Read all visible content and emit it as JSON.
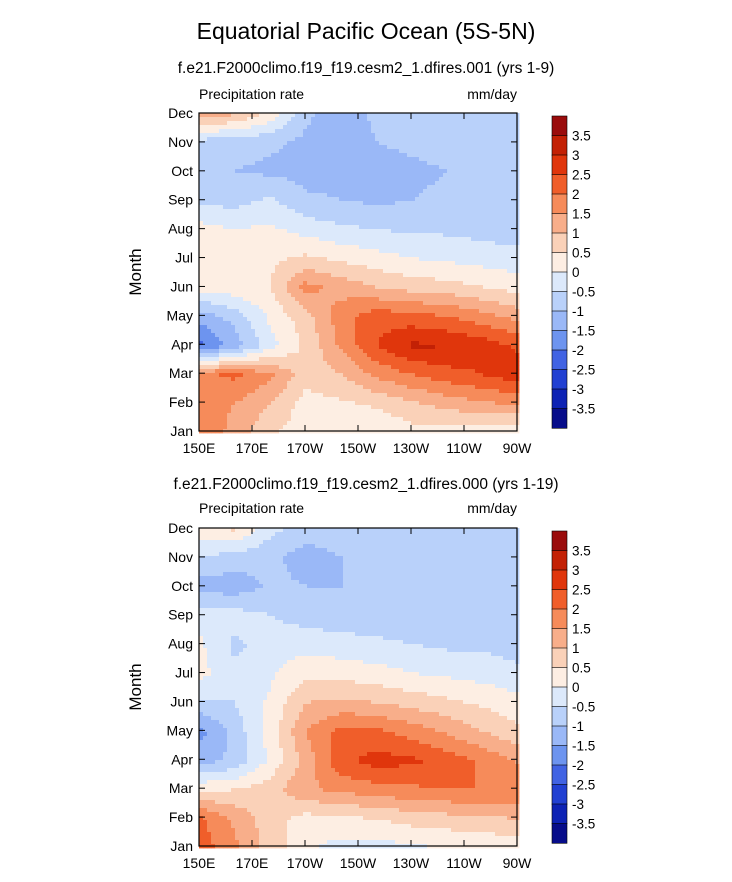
{
  "title": "Equatorial Pacific Ocean (5S-5N)",
  "panels": [
    {
      "subtitle": "f.e21.F2000climo.f19_f19.cesm2_1.dfires.001 (yrs 1-9)",
      "left_string": "Precipitation rate",
      "right_string": "mm/day"
    },
    {
      "subtitle": "f.e21.F2000climo.f19_f19.cesm2_1.dfires.000 (yrs 1-19)",
      "left_string": "Precipitation rate",
      "right_string": "mm/day"
    }
  ],
  "chart_data": {
    "type": "heatmap",
    "ylabel": "Month",
    "x_ticks": [
      "150E",
      "170E",
      "170W",
      "150W",
      "130W",
      "110W",
      "90W"
    ],
    "y_ticks": [
      "Jan",
      "Feb",
      "Mar",
      "Apr",
      "May",
      "Jun",
      "Jul",
      "Aug",
      "Sep",
      "Oct",
      "Nov",
      "Dec"
    ],
    "colorbar_ticks": [
      "3.5",
      "3",
      "2.5",
      "2",
      "1.5",
      "1",
      "0.5",
      "0",
      "-0.5",
      "-1",
      "-1.5",
      "-2",
      "-2.5",
      "-3",
      "-3.5"
    ],
    "colorbar_colors": [
      "#9a0c0c",
      "#c32105",
      "#e0360c",
      "#f05e2a",
      "#f68b5a",
      "#f8ae8a",
      "#fad1b8",
      "#fdeee3",
      "#dce9fb",
      "#b9d1fa",
      "#9ab8f7",
      "#6d94ef",
      "#4163e3",
      "#2140d2",
      "#0d22b4",
      "#070d8a"
    ],
    "panels": [
      {
        "name": "f.e21.F2000climo.f19_f19.cesm2_1.dfires.001 (yrs 1-9)",
        "z": [
          [
            2.0,
            1.3,
            0.6,
            0.2,
            0.1,
            0.0,
            0.3,
            0.2,
            0.1,
            0.0
          ],
          [
            1.8,
            1.5,
            1.0,
            0.3,
            0.4,
            0.6,
            0.9,
            1.2,
            1.4,
            1.6
          ],
          [
            1.9,
            2.1,
            1.6,
            0.7,
            1.0,
            1.6,
            2.0,
            2.3,
            2.5,
            2.8
          ],
          [
            -2.2,
            -1.3,
            -0.2,
            0.6,
            1.6,
            2.5,
            3.1,
            3.0,
            2.8,
            2.4
          ],
          [
            -1.3,
            -0.8,
            0.1,
            0.8,
            1.8,
            2.3,
            2.2,
            2.0,
            1.7,
            1.3
          ],
          [
            0.2,
            0.3,
            0.5,
            1.7,
            1.3,
            1.0,
            0.8,
            0.7,
            0.5,
            0.3
          ],
          [
            0.5,
            0.4,
            0.4,
            0.6,
            0.4,
            0.2,
            0.0,
            -0.1,
            -0.2,
            -0.3
          ],
          [
            0.2,
            0.0,
            0.1,
            -0.2,
            -0.4,
            -0.5,
            -0.6,
            -0.6,
            -0.7,
            -0.8
          ],
          [
            -0.6,
            -0.7,
            -0.4,
            -0.9,
            -1.0,
            -1.1,
            -1.0,
            -0.9,
            -0.7,
            -0.6
          ],
          [
            -0.9,
            -1.0,
            -1.1,
            -1.2,
            -1.2,
            -1.2,
            -1.1,
            -1.0,
            -0.9,
            -0.7
          ],
          [
            -0.7,
            -0.8,
            -0.9,
            -1.1,
            -1.2,
            -1.0,
            -0.9,
            -0.8,
            -0.7,
            -0.6
          ],
          [
            1.4,
            1.1,
            0.4,
            -0.9,
            -1.3,
            -0.9,
            -0.6,
            -0.5,
            -0.5,
            -0.5
          ]
        ]
      },
      {
        "name": "f.e21.F2000climo.f19_f19.cesm2_1.dfires.000 (yrs 1-19)",
        "z": [
          [
            2.3,
            1.6,
            0.8,
            0.1,
            -0.2,
            -0.2,
            -0.1,
            0.0,
            0.1,
            0.1
          ],
          [
            2.1,
            1.4,
            0.7,
            0.3,
            0.4,
            0.5,
            0.7,
            0.8,
            0.9,
            1.0
          ],
          [
            0.4,
            0.5,
            0.8,
            1.4,
            1.6,
            1.8,
            1.9,
            2.0,
            2.0,
            2.0
          ],
          [
            -1.2,
            -0.9,
            0.1,
            1.2,
            2.4,
            2.7,
            2.6,
            2.3,
            1.9,
            1.4
          ],
          [
            -1.7,
            -0.8,
            0.2,
            1.5,
            2.2,
            2.1,
            1.8,
            1.4,
            1.0,
            0.6
          ],
          [
            -0.6,
            -0.5,
            0.1,
            1.0,
            1.1,
            1.0,
            0.8,
            0.6,
            0.4,
            0.2
          ],
          [
            0.2,
            -0.4,
            -0.1,
            0.4,
            0.3,
            0.2,
            0.0,
            -0.1,
            -0.2,
            -0.4
          ],
          [
            0.1,
            -0.6,
            -0.3,
            -0.2,
            -0.3,
            -0.4,
            -0.5,
            -0.6,
            -0.6,
            -0.7
          ],
          [
            -0.2,
            -0.3,
            -0.5,
            -0.7,
            -0.8,
            -0.8,
            -0.8,
            -0.7,
            -0.8,
            -0.9
          ],
          [
            -1.2,
            -1.3,
            -0.9,
            -1.0,
            -1.0,
            -0.9,
            -0.8,
            -0.9,
            -1.0,
            -0.8
          ],
          [
            -0.5,
            -0.7,
            -0.9,
            -1.2,
            -1.0,
            -0.9,
            -0.8,
            -0.7,
            -0.6,
            -0.5
          ],
          [
            0.4,
            0.6,
            -0.3,
            -0.8,
            -0.7,
            -0.6,
            -0.5,
            -0.5,
            -0.5,
            -0.5
          ]
        ]
      }
    ]
  }
}
